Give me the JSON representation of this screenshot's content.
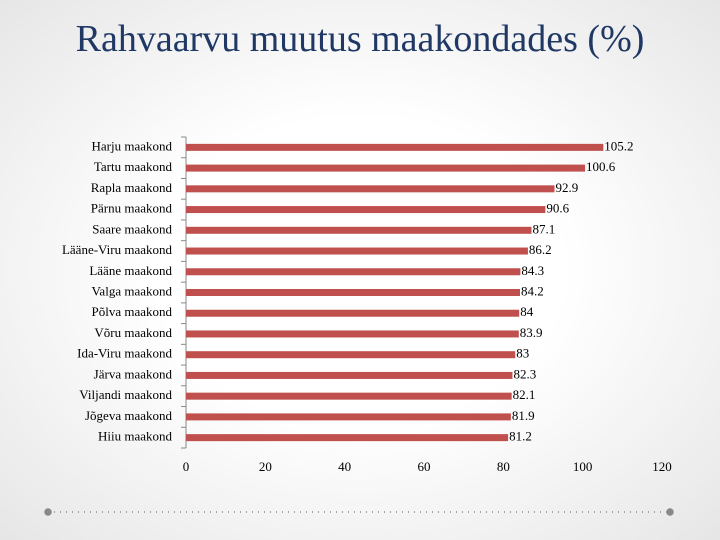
{
  "chart_data": {
    "type": "bar",
    "orientation": "horizontal",
    "title": "Rahvaarvu muutus maakondades (%)",
    "categories": [
      "Harju maakond",
      "Tartu maakond",
      "Rapla maakond",
      "Pärnu maakond",
      "Saare maakond",
      "Lääne-Viru maakond",
      "Lääne maakond",
      "Valga maakond",
      "Põlva maakond",
      "Võru maakond",
      "Ida-Viru maakond",
      "Järva maakond",
      "Viljandi maakond",
      "Jõgeva maakond",
      "Hiiu maakond"
    ],
    "values": [
      105.2,
      100.6,
      92.9,
      90.6,
      87.1,
      86.2,
      84.3,
      84.2,
      84,
      83.9,
      83,
      82.3,
      82.1,
      81.9,
      81.2
    ],
    "color": "#c0504d",
    "xlim": [
      0,
      120
    ],
    "xticks": [
      0,
      20,
      40,
      60,
      80,
      100,
      120
    ],
    "grid": false
  }
}
